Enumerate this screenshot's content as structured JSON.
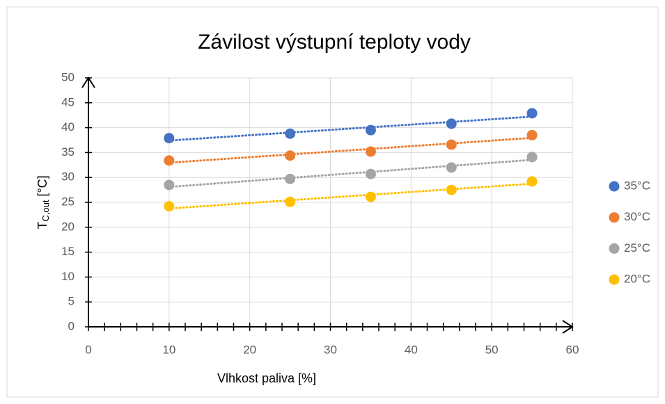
{
  "chart_data": {
    "type": "scatter",
    "title": "Závilost výstupní teploty vody",
    "xlabel": "Vlhkost paliva [%]",
    "ylabel": {
      "main": "T",
      "sub": "C,out",
      "unit": " [°C]"
    },
    "x": [
      10,
      25,
      35,
      45,
      55
    ],
    "series": [
      {
        "name": "35°C",
        "color": "#4472c4",
        "values": [
          37.9,
          38.8,
          39.5,
          40.8,
          42.9
        ]
      },
      {
        "name": "30°C",
        "color": "#ed7d31",
        "values": [
          33.4,
          34.4,
          35.2,
          36.6,
          38.5
        ]
      },
      {
        "name": "25°C",
        "color": "#a5a5a5",
        "values": [
          28.5,
          29.7,
          30.7,
          32.0,
          34.1
        ]
      },
      {
        "name": "20°C",
        "color": "#ffc000",
        "values": [
          24.2,
          25.1,
          26.1,
          27.5,
          29.2
        ]
      }
    ],
    "xlim": [
      0,
      60
    ],
    "xticks": [
      0,
      10,
      20,
      30,
      40,
      50,
      60
    ],
    "ylim": [
      0,
      50
    ],
    "yticks": [
      0,
      5,
      10,
      15,
      20,
      25,
      30,
      35,
      40,
      45,
      50
    ],
    "grid": true,
    "trendline": "linear",
    "legend": "right"
  }
}
